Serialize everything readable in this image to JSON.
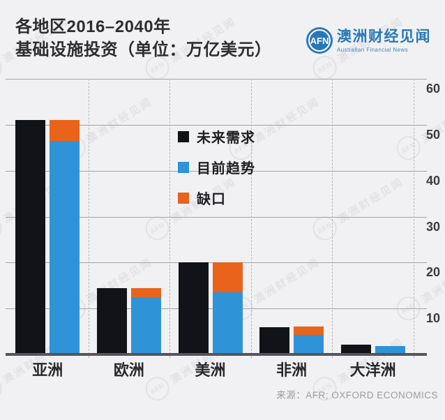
{
  "header": {
    "title_line1": "各地区2016–2040年",
    "title_line2": "基础设施投资（单位：万亿美元）"
  },
  "logo": {
    "abbr": "AFN",
    "name_cn": "澳洲财经见闻",
    "name_en": "Australian Financial News",
    "brand_color": "#2878b8"
  },
  "watermark_text": "澳洲财经见闻",
  "source": "来源：AFR; OXFORD ECONOMICS",
  "chart_data": {
    "type": "bar",
    "title": "各地区2016–2040年基础设施投资（单位：万亿美元）",
    "categories": [
      "亚洲",
      "欧洲",
      "美洲",
      "非洲",
      "大洋洲"
    ],
    "series": [
      {
        "name": "未来需求",
        "color": "#121318",
        "stack": "demand",
        "values": [
          51,
          14.5,
          20,
          6,
          2.1
        ]
      },
      {
        "name": "目前趋势",
        "color": "#2e93d7",
        "stack": "trend",
        "values": [
          46.5,
          12.5,
          13.5,
          4.2,
          1.8
        ]
      },
      {
        "name": "缺口",
        "color": "#e9631b",
        "stack": "trend",
        "values": [
          4.5,
          2,
          6.5,
          1.9,
          0
        ]
      }
    ],
    "xlabel": "",
    "ylabel": "",
    "ylim": [
      0,
      60
    ],
    "y_ticks": [
      10,
      20,
      30,
      40,
      50,
      60
    ],
    "y_axis_side": "right",
    "grid": true,
    "legend_position": "inside-top-left"
  }
}
